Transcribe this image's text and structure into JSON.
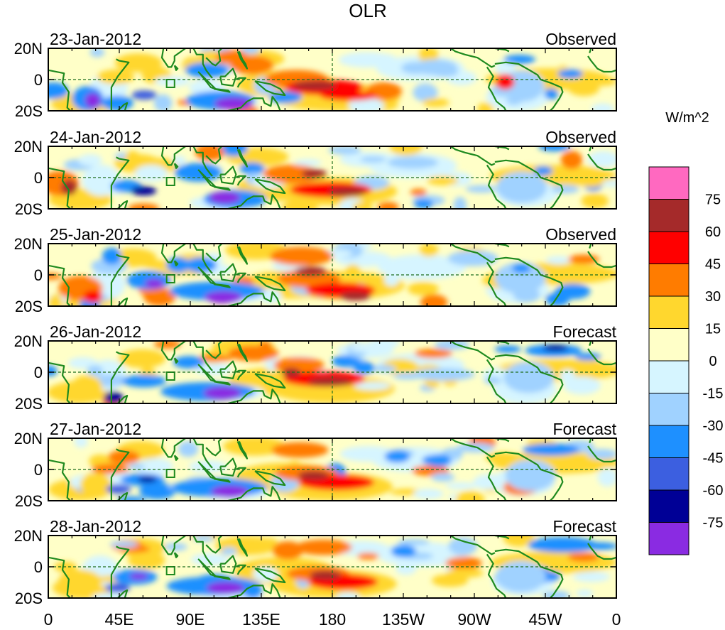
{
  "chart_data": {
    "type": "heatmap",
    "title": "OLR",
    "colorbar": {
      "units": "W/m^2",
      "tick_labels": [
        "75",
        "60",
        "45",
        "30",
        "15",
        "0",
        "-15",
        "-30",
        "-45",
        "-60",
        "-75"
      ],
      "levels": [
        {
          "color": "#ff69c0"
        },
        {
          "color": "#a52a2a"
        },
        {
          "color": "#ff0000"
        },
        {
          "color": "#ff7c00"
        },
        {
          "color": "#ffd72e"
        },
        {
          "color": "#ffffc8"
        },
        {
          "color": "#d6f5ff"
        },
        {
          "color": "#a0d2ff"
        },
        {
          "color": "#1e90ff"
        },
        {
          "color": "#3c5fe0"
        },
        {
          "color": "#000096"
        },
        {
          "color": "#8a2be2"
        }
      ]
    },
    "x_ticks": [
      "0",
      "45E",
      "90E",
      "135E",
      "180",
      "135W",
      "90W",
      "45W",
      "0"
    ],
    "y_ticks": [
      "20N",
      "0",
      "20S"
    ],
    "lat_range": [
      -20,
      20
    ],
    "lon_range": [
      0,
      360
    ],
    "panels": [
      {
        "date": "23-Jan-2012",
        "kind": "Observed"
      },
      {
        "date": "24-Jan-2012",
        "kind": "Observed"
      },
      {
        "date": "25-Jan-2012",
        "kind": "Observed"
      },
      {
        "date": "26-Jan-2012",
        "kind": "Forecast"
      },
      {
        "date": "27-Jan-2012",
        "kind": "Forecast"
      },
      {
        "date": "28-Jan-2012",
        "kind": "Forecast"
      }
    ]
  }
}
